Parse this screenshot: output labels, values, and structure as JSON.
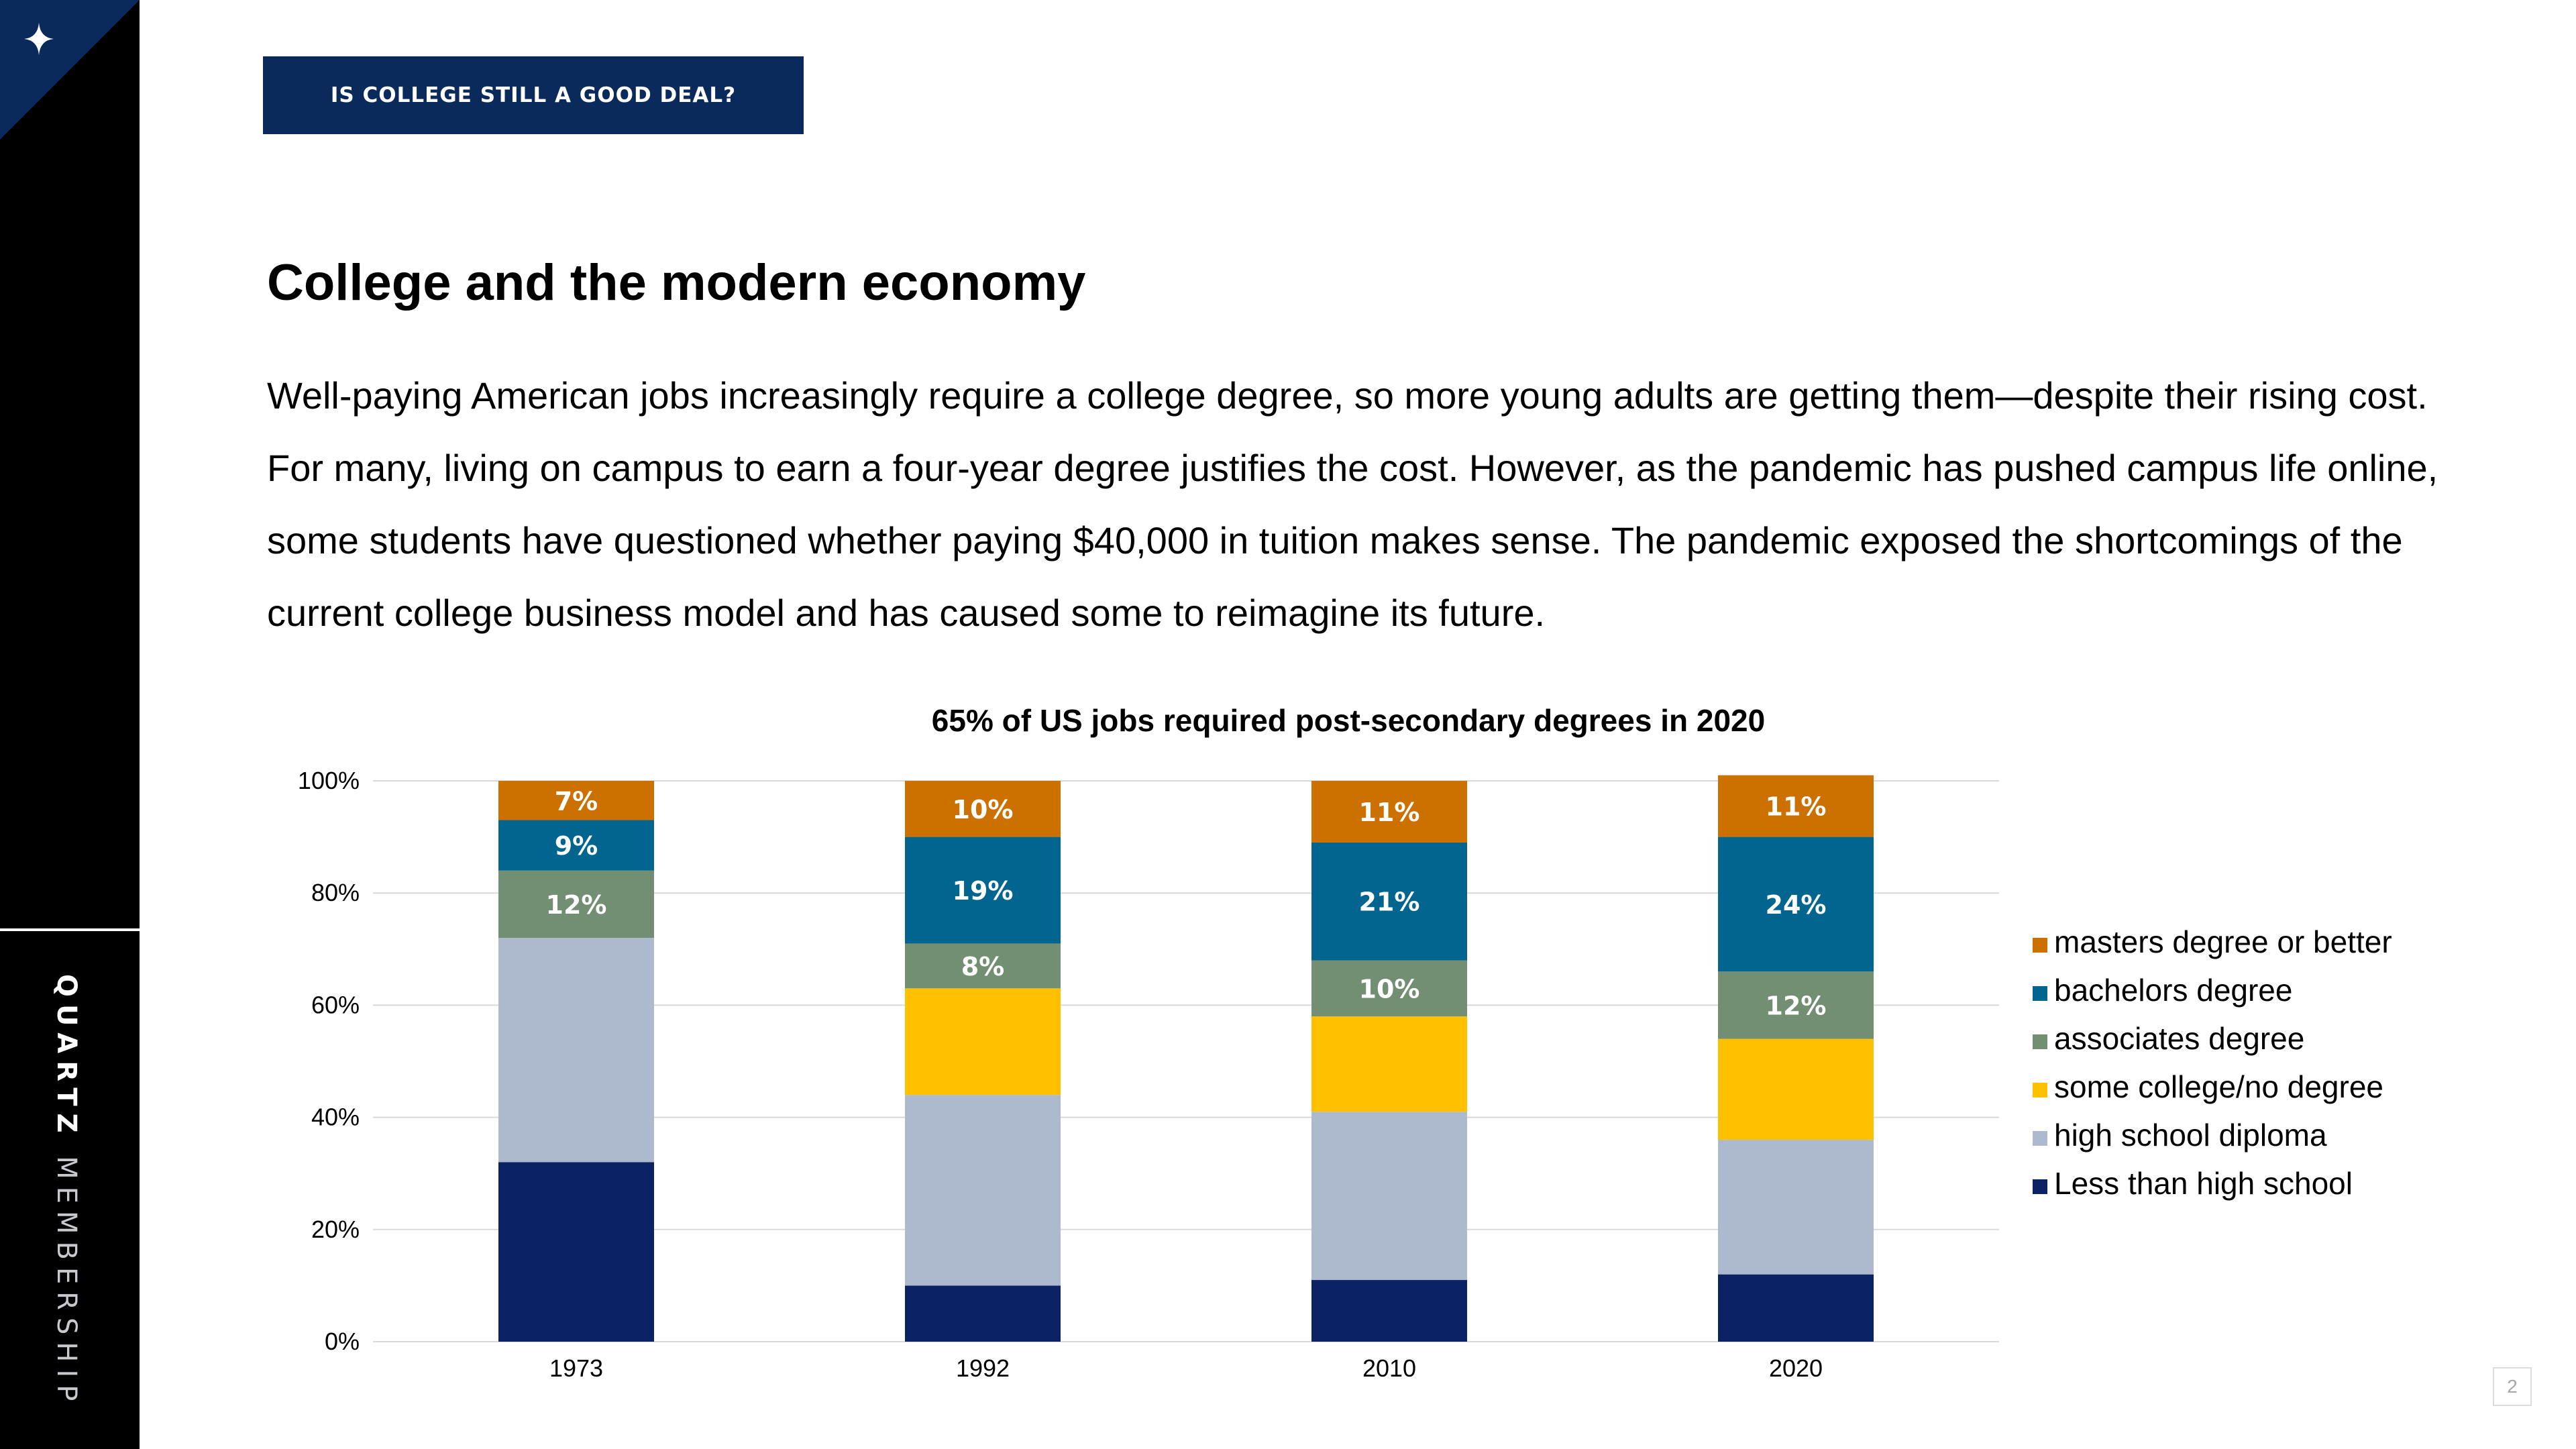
{
  "brand": {
    "name_bold": "QUARTZ",
    "name_light": "MEMBERSHIP",
    "accent_color": "#0b2a5c"
  },
  "header": {
    "section_tag": "IS COLLEGE STILL A GOOD DEAL?"
  },
  "main": {
    "title": "College and the modern economy",
    "body": "Well-paying American jobs increasingly require a college degree, so more young adults are getting them—despite their rising cost. For many, living on campus to earn a four-year degree justifies the cost. However, as the pandemic has pushed campus life online, some students have questioned whether paying $40,000 in tuition makes sense. The pandemic exposed the shortcomings of the current college business model and has caused some to reimagine its future."
  },
  "footer": {
    "page_number": "2"
  },
  "chart_data": {
    "type": "bar",
    "stacked": true,
    "title": "65% of US jobs required post-secondary degrees in 2020",
    "xlabel": "",
    "ylabel": "",
    "categories": [
      "1973",
      "1992",
      "2010",
      "2020"
    ],
    "ylim": [
      0,
      100
    ],
    "y_ticks": [
      "0%",
      "20%",
      "40%",
      "60%",
      "80%",
      "100%"
    ],
    "grid": true,
    "legend_position": "right",
    "series": [
      {
        "name": "Less than high school",
        "color": "#0b2265",
        "values": [
          32,
          10,
          11,
          12
        ],
        "labels": [
          "",
          "",
          "",
          ""
        ],
        "label_color": "#ffffff"
      },
      {
        "name": "high school diploma",
        "color": "#adb9cc",
        "values": [
          40,
          34,
          30,
          24
        ],
        "labels": [
          "",
          "",
          "",
          ""
        ],
        "label_color": "#ffffff"
      },
      {
        "name": "some college/no degree",
        "color": "#ffc000",
        "values": [
          0,
          19,
          17,
          18
        ],
        "labels": [
          "",
          "",
          "",
          ""
        ],
        "label_color": "#ffffff"
      },
      {
        "name": "associates degree",
        "color": "#728f73",
        "values": [
          12,
          8,
          10,
          12
        ],
        "labels": [
          "12%",
          "8%",
          "10%",
          "12%"
        ],
        "label_color": "#ffffff"
      },
      {
        "name": "bachelors degree",
        "color": "#01658f",
        "values": [
          9,
          19,
          21,
          24
        ],
        "labels": [
          "9%",
          "19%",
          "21%",
          "24%"
        ],
        "label_color": "#ffffff"
      },
      {
        "name": "masters degree or better",
        "color": "#cc7000",
        "values": [
          7,
          10,
          11,
          11
        ],
        "labels": [
          "7%",
          "10%",
          "11%",
          "11%"
        ],
        "label_color": "#ffffff"
      }
    ]
  }
}
